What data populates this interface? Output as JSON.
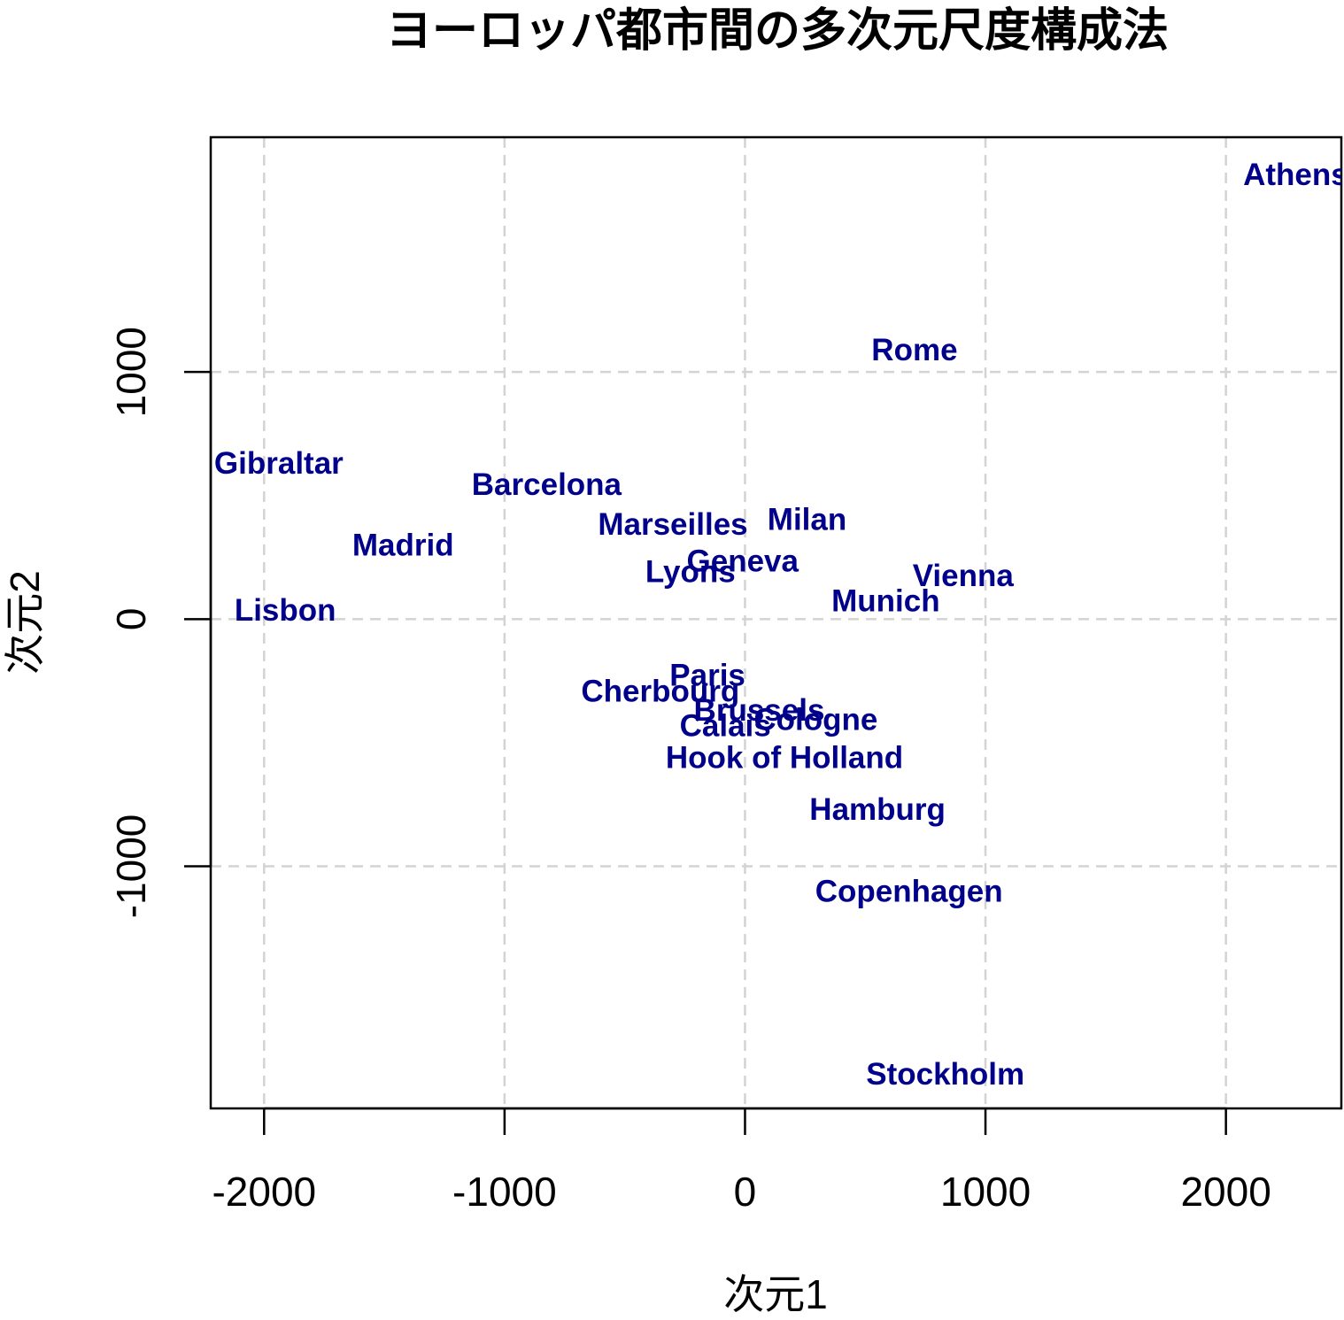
{
  "chart_data": {
    "type": "scatter",
    "title": "ヨーロッパ都市間の多次元尺度構成法",
    "xlabel": "次元1",
    "ylabel": "次元2",
    "xlim": [
      -2222,
      2480
    ],
    "ylim": [
      -1980,
      1950
    ],
    "xticks": [
      -2000,
      -1000,
      0,
      1000,
      2000
    ],
    "yticks": [
      -1000,
      0,
      1000
    ],
    "xtick_labels": [
      "-2000",
      "-1000",
      "0",
      "1000",
      "2000"
    ],
    "ytick_labels": [
      "-1000",
      "0",
      "1000"
    ],
    "grid": true,
    "label_color": "#00008B",
    "grid_color": "#D3D3D3",
    "points": [
      {
        "label": "Athens",
        "x": 2290,
        "y": 1800
      },
      {
        "label": "Barcelona",
        "x": -825,
        "y": 546
      },
      {
        "label": "Brussels",
        "x": 59,
        "y": -367
      },
      {
        "label": "Calais",
        "x": -82,
        "y": -430
      },
      {
        "label": "Cherbourg",
        "x": -352,
        "y": -290
      },
      {
        "label": "Cologne",
        "x": 294,
        "y": -405
      },
      {
        "label": "Copenhagen",
        "x": 682,
        "y": -1100
      },
      {
        "label": "Geneva",
        "x": -10,
        "y": 236
      },
      {
        "label": "Gibraltar",
        "x": -1939,
        "y": 632
      },
      {
        "label": "Hamburg",
        "x": 551,
        "y": -770
      },
      {
        "label": "Hook of Holland",
        "x": 164,
        "y": -560
      },
      {
        "label": "Lisbon",
        "x": -1912,
        "y": 37
      },
      {
        "label": "Lyons",
        "x": -227,
        "y": 192
      },
      {
        "label": "Madrid",
        "x": -1422,
        "y": 301
      },
      {
        "label": "Marseilles",
        "x": -300,
        "y": 385
      },
      {
        "label": "Milan",
        "x": 258,
        "y": 405
      },
      {
        "label": "Munich",
        "x": 585,
        "y": 75
      },
      {
        "label": "Paris",
        "x": -156,
        "y": -226
      },
      {
        "label": "Rome",
        "x": 705,
        "y": 1090
      },
      {
        "label": "Stockholm",
        "x": 833,
        "y": -1840
      },
      {
        "label": "Vienna",
        "x": 907,
        "y": 177
      }
    ]
  }
}
